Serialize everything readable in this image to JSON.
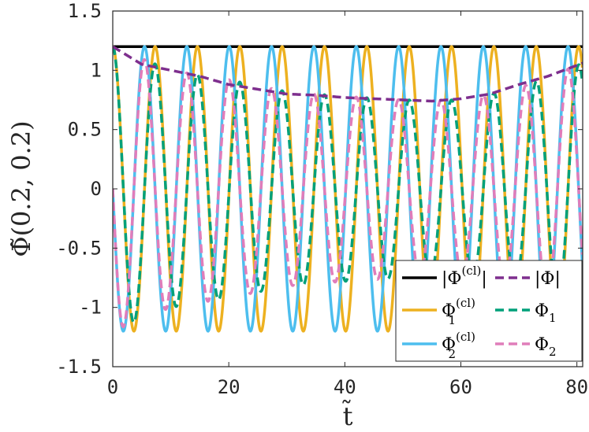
{
  "chart_data": {
    "type": "line",
    "xlabel": "t̃",
    "ylabel": "Φ̃(0.2, 0.2)",
    "xlim": [
      0,
      81
    ],
    "ylim": [
      -1.5,
      1.5
    ],
    "x_ticks": [
      0,
      20,
      40,
      60,
      80
    ],
    "x_tick_labels": [
      "0",
      "20",
      "40",
      "60",
      "80"
    ],
    "y_ticks": [
      1.5,
      1,
      0.5,
      0,
      -0.5,
      -1,
      -1.5
    ],
    "y_tick_labels": [
      "1.5",
      "1",
      "0.5",
      "0",
      "-0.5",
      "-1",
      "-1.5"
    ],
    "grid": false,
    "legend_position": "bottom-right",
    "period_estimate": 7.3,
    "series": [
      {
        "name": "|Φ^(cl)|",
        "color": "#000000",
        "style": "solid",
        "x": [
          0,
          81
        ],
        "y": [
          1.2,
          1.2
        ]
      },
      {
        "name": "|Φ|",
        "color": "#7E2F8E",
        "style": "dashed",
        "x": [
          0,
          5,
          10,
          15,
          20,
          25,
          30,
          35,
          40,
          45,
          50,
          55,
          60,
          65,
          70,
          75,
          81
        ],
        "y": [
          1.2,
          1.05,
          1.0,
          0.95,
          0.88,
          0.84,
          0.8,
          0.79,
          0.77,
          0.76,
          0.75,
          0.74,
          0.76,
          0.8,
          0.88,
          0.95,
          1.06
        ]
      },
      {
        "name": "Φ₁^(cl)",
        "color": "#EDB120",
        "style": "solid",
        "amplitude": [
          1.2,
          1.2
        ],
        "phase": "cos"
      },
      {
        "name": "Φ₁",
        "color": "#00A07A",
        "style": "dashed",
        "amplitude_x": [
          0,
          10,
          20,
          30,
          40,
          50,
          60,
          70,
          81
        ],
        "amplitude": [
          1.2,
          1.0,
          0.92,
          0.82,
          0.78,
          0.75,
          0.75,
          0.85,
          1.06
        ],
        "phase": "cos"
      },
      {
        "name": "Φ₂^(cl)",
        "color": "#4DBEEE",
        "style": "solid",
        "amplitude": [
          1.2,
          1.2
        ],
        "phase": "-sin"
      },
      {
        "name": "Φ₂",
        "color": "#E07DBA",
        "style": "dashed",
        "amplitude_x": [
          0,
          10,
          20,
          30,
          40,
          50,
          60,
          70,
          81
        ],
        "amplitude": [
          1.2,
          1.0,
          0.92,
          0.82,
          0.78,
          0.75,
          0.75,
          0.85,
          1.06
        ],
        "phase": "-sin"
      }
    ],
    "legend": [
      {
        "label": "|Φ",
        "sup": "(cl)",
        "tail": "|",
        "color": "#000000",
        "style": "solid"
      },
      {
        "label": "|Φ|",
        "sup": "",
        "tail": "",
        "color": "#7E2F8E",
        "style": "dashed"
      },
      {
        "label": "Φ",
        "sub": "1",
        "sup": "(cl)",
        "color": "#EDB120",
        "style": "solid"
      },
      {
        "label": "Φ",
        "sub": "1",
        "sup": "",
        "color": "#00A07A",
        "style": "dashed"
      },
      {
        "label": "Φ",
        "sub": "2",
        "sup": "(cl)",
        "color": "#4DBEEE",
        "style": "solid"
      },
      {
        "label": "Φ",
        "sub": "2",
        "sup": "",
        "color": "#E07DBA",
        "style": "dashed"
      }
    ]
  }
}
